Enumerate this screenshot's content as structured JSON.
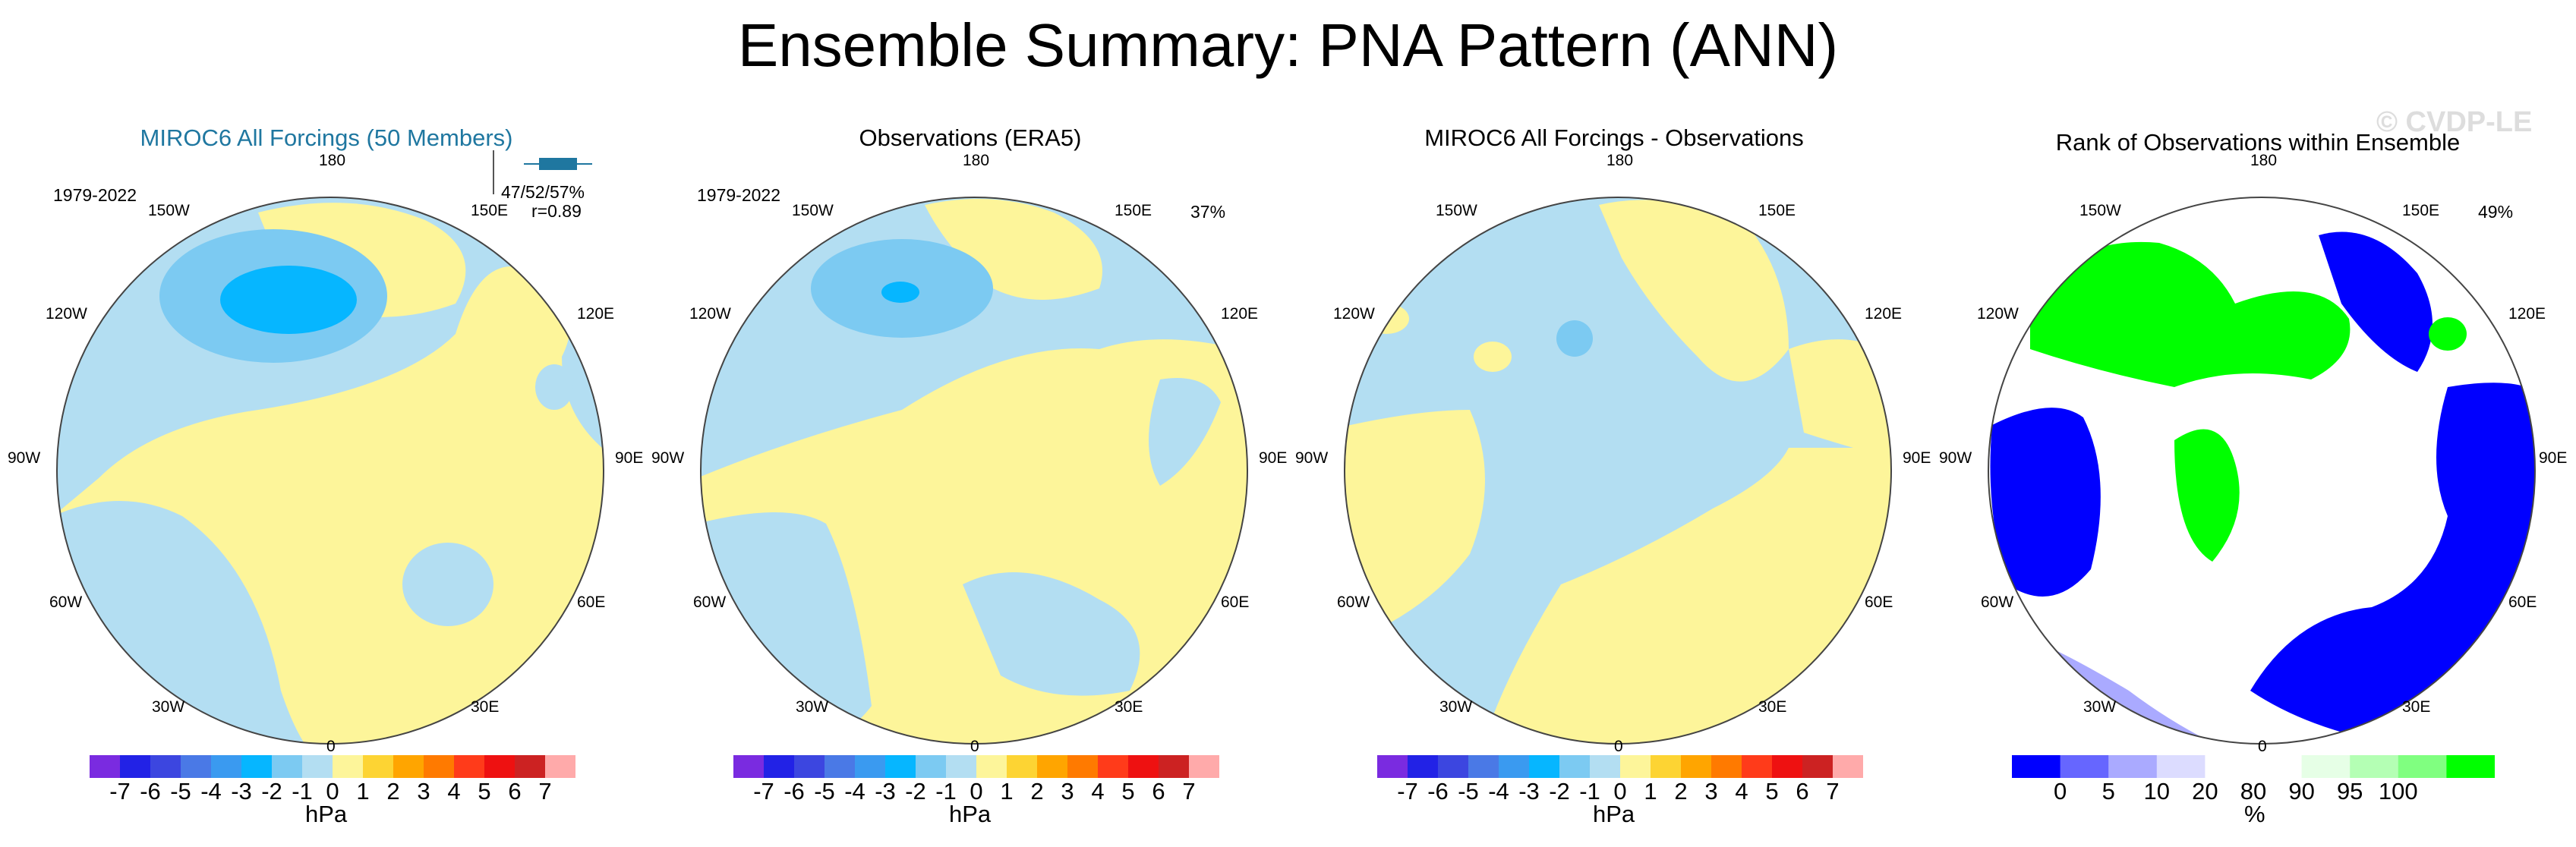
{
  "title": "Ensemble Summary: PNA Pattern (ANN)",
  "watermark": "© CVDP-LE",
  "panels": [
    {
      "title": "MIROC6 All Forcings (50 Members)",
      "period": "1979-2022",
      "inset": {
        "line1": "47/52/57%",
        "line2": "r=0.89"
      },
      "colorbar": "anomaly"
    },
    {
      "title": "Observations (ERA5)",
      "period": "1979-2022",
      "percent": "37%",
      "colorbar": "anomaly"
    },
    {
      "title": "MIROC6 All Forcings - Observations",
      "colorbar": "anomaly"
    },
    {
      "title": "Rank of Observations within Ensemble",
      "percent": "49%",
      "colorbar": "rank"
    }
  ],
  "lon_labels": {
    "top": "180",
    "bottom": "0",
    "left": "90W",
    "right": "90E",
    "ul1": "150W",
    "ul2": "120W",
    "ur1": "150E",
    "ur2": "120E",
    "ll1": "60W",
    "ll2": "30W",
    "lr1": "60E",
    "lr2": "30E"
  },
  "anomaly_colorbar": {
    "unit": "hPa",
    "colors": [
      "#7a2be0",
      "#2222e6",
      "#3c46e0",
      "#4a79e6",
      "#3a9af0",
      "#06b6ff",
      "#7ccaf2",
      "#b3def2",
      "#fdf59a",
      "#fdd433",
      "#ffa500",
      "#ff7a00",
      "#ff3b1a",
      "#ee1111",
      "#cc2222",
      "#ffaaaa"
    ],
    "ticks": [
      "-7",
      "-6",
      "-5",
      "-4",
      "-3",
      "-2",
      "-1",
      "0",
      "1",
      "2",
      "3",
      "4",
      "5",
      "6",
      "7"
    ]
  },
  "rank_colorbar": {
    "unit": "%",
    "colors": [
      "#0000ff",
      "#6666ff",
      "#aaaaff",
      "#dcdcff",
      "#ffffff",
      "#ffffff",
      "#e6ffe6",
      "#b4ffb4",
      "#80ff80",
      "#00ff00"
    ],
    "ticks": [
      "0",
      "5",
      "10",
      "20",
      "80",
      "90",
      "95",
      "100"
    ]
  },
  "map_colors": {
    "neg1": "#b3def2",
    "neg2": "#7ccaf2",
    "neg3": "#3a9af0",
    "neg4": "#06b6ff",
    "pos1": "#fdf59a",
    "pos2": "#fdd433",
    "rank_low": "#0000ff",
    "rank_low2": "#aaaaff",
    "rank_high": "#00ff00"
  }
}
